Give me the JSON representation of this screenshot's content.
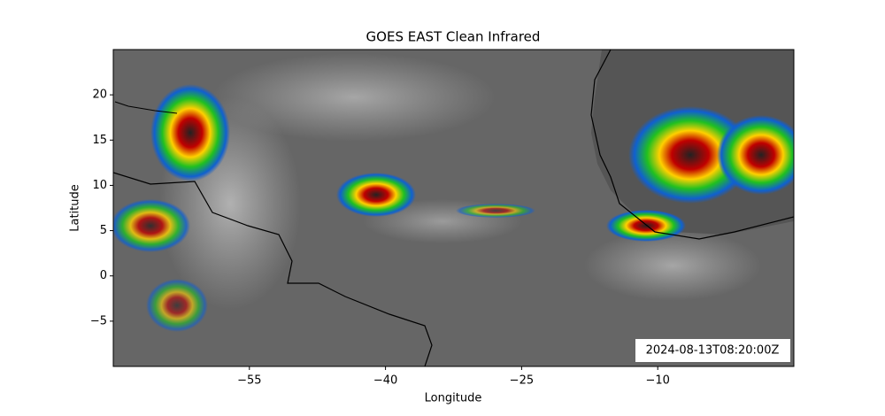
{
  "chart_data": {
    "type": "image",
    "title": "GOES EAST Clean Infrared",
    "x_label": "Longitude",
    "y_label": "Latitude",
    "xlim": [
      -70,
      5
    ],
    "ylim": [
      -10,
      25
    ],
    "xticks": [
      {
        "value": -55,
        "label": "−55"
      },
      {
        "value": -40,
        "label": "−40"
      },
      {
        "value": -25,
        "label": "−25"
      },
      {
        "value": -10,
        "label": "−10"
      }
    ],
    "yticks": [
      {
        "value": -5,
        "label": "−5"
      },
      0,
      5,
      10,
      15,
      20
    ],
    "annotation": "2024-08-13T08:20:00Z"
  }
}
